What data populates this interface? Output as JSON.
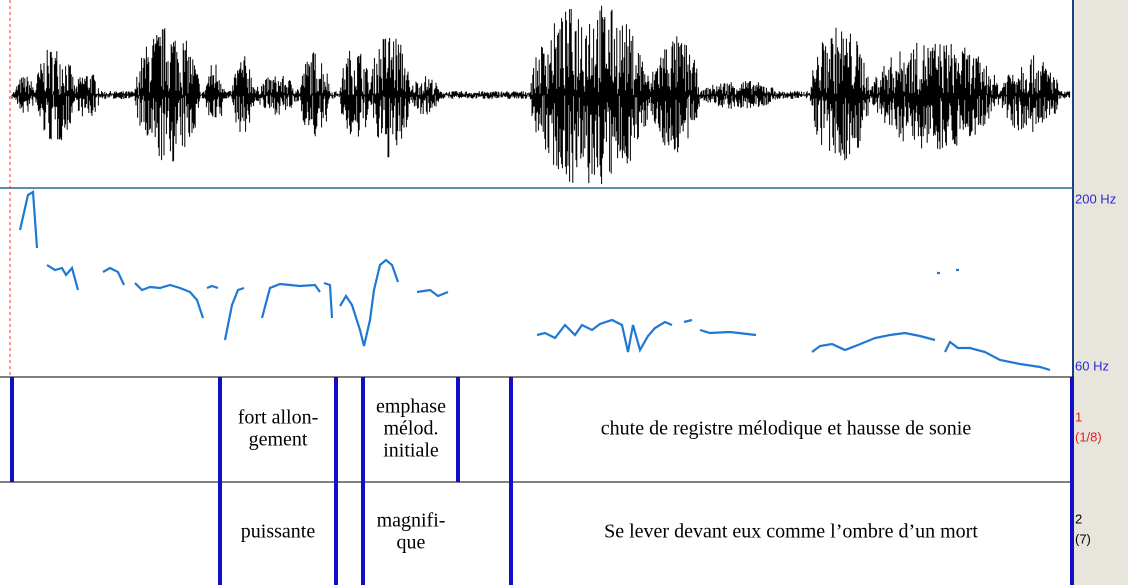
{
  "pitch_axis": {
    "top": "200 Hz",
    "bottom": "60 Hz"
  },
  "tiers": [
    {
      "number": "1",
      "count": "(1/8)",
      "intervals": [
        [
          "fort allon-",
          "gement"
        ],
        [
          "emphase",
          "mélod.",
          "initiale"
        ],
        [
          "chute de registre mélodique et hausse de sonie"
        ]
      ]
    },
    {
      "number": "2",
      "count": "(7)",
      "intervals": [
        [
          "puissante"
        ],
        [
          "magnifi-",
          "que"
        ],
        [
          "Se lever devant eux comme l’ombre d’un mort"
        ]
      ]
    }
  ]
}
